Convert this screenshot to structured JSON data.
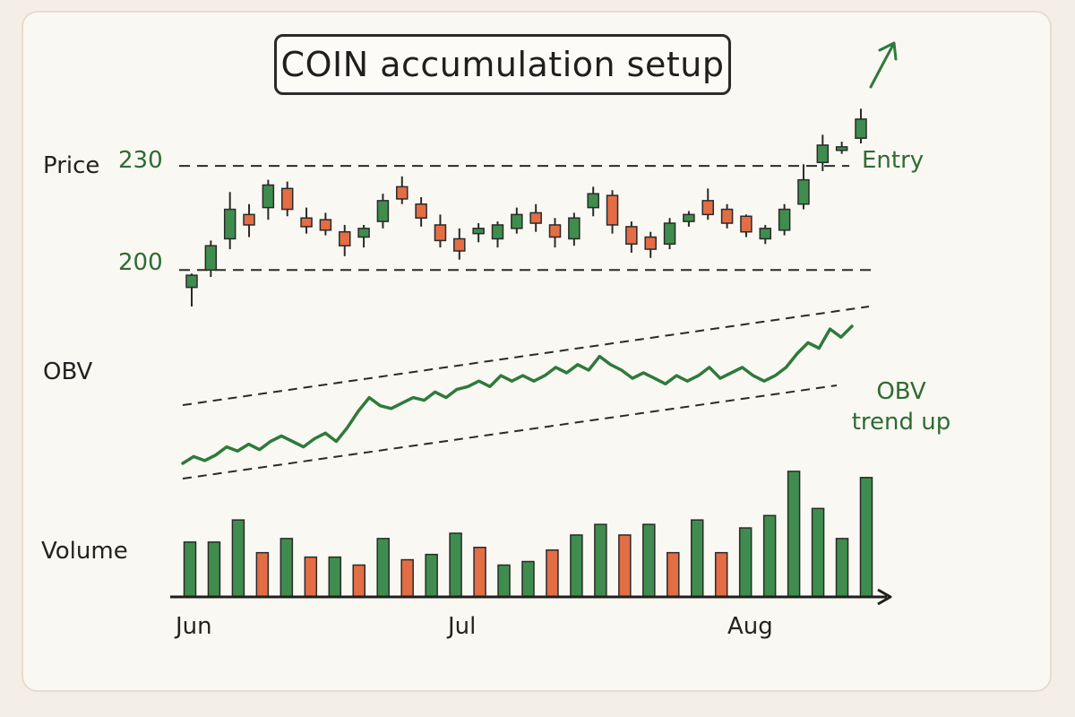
{
  "chart_data": {
    "type": "candlestick-obv-volume",
    "title": "COIN accumulation setup",
    "panels": {
      "price_label": "Price",
      "obv_label": "OBV",
      "volume_label": "Volume"
    },
    "price": {
      "levels": [
        {
          "label": "230",
          "value": 230
        },
        {
          "label": "200",
          "value": 200
        }
      ],
      "entry_label": "Entry",
      "ylim": [
        190,
        252
      ],
      "candles": [
        {
          "open": 195,
          "high": 199,
          "low": 189.5,
          "close": 198.5
        },
        {
          "open": 200,
          "high": 208.5,
          "low": 198,
          "close": 207
        },
        {
          "open": 209,
          "high": 222.5,
          "low": 206,
          "close": 217.5
        },
        {
          "open": 216,
          "high": 219,
          "low": 209.5,
          "close": 213
        },
        {
          "open": 218,
          "high": 226,
          "low": 214.5,
          "close": 224.5
        },
        {
          "open": 223.5,
          "high": 225.5,
          "low": 215.5,
          "close": 217.5
        },
        {
          "open": 215,
          "high": 218,
          "low": 210.5,
          "close": 212.5
        },
        {
          "open": 214.5,
          "high": 216.5,
          "low": 210,
          "close": 211.5
        },
        {
          "open": 211,
          "high": 213,
          "low": 204,
          "close": 207
        },
        {
          "open": 209.5,
          "high": 213,
          "low": 206.5,
          "close": 212
        },
        {
          "open": 214,
          "high": 222,
          "low": 212,
          "close": 220
        },
        {
          "open": 224,
          "high": 227,
          "low": 219,
          "close": 220.5
        },
        {
          "open": 219,
          "high": 221,
          "low": 212.5,
          "close": 215
        },
        {
          "open": 213,
          "high": 216,
          "low": 206.5,
          "close": 208.5
        },
        {
          "open": 209,
          "high": 212,
          "low": 203,
          "close": 205.5
        },
        {
          "open": 210.5,
          "high": 213.5,
          "low": 208,
          "close": 212
        },
        {
          "open": 209,
          "high": 214,
          "low": 206.5,
          "close": 213
        },
        {
          "open": 212,
          "high": 218,
          "low": 210.5,
          "close": 216
        },
        {
          "open": 216.5,
          "high": 219,
          "low": 211,
          "close": 213.5
        },
        {
          "open": 213,
          "high": 215,
          "low": 206.5,
          "close": 209.5
        },
        {
          "open": 209,
          "high": 216.5,
          "low": 207,
          "close": 215
        },
        {
          "open": 218,
          "high": 224,
          "low": 215.5,
          "close": 222
        },
        {
          "open": 221.5,
          "high": 223,
          "low": 210.5,
          "close": 213
        },
        {
          "open": 212.5,
          "high": 214,
          "low": 205,
          "close": 207.5
        },
        {
          "open": 209.5,
          "high": 211,
          "low": 203.5,
          "close": 206
        },
        {
          "open": 207.5,
          "high": 215,
          "low": 206,
          "close": 213.5
        },
        {
          "open": 214,
          "high": 217,
          "low": 212.5,
          "close": 216
        },
        {
          "open": 220,
          "high": 223.5,
          "low": 214.5,
          "close": 216
        },
        {
          "open": 217.5,
          "high": 219,
          "low": 212,
          "close": 213.5
        },
        {
          "open": 215.5,
          "high": 216,
          "low": 209.5,
          "close": 211
        },
        {
          "open": 209,
          "high": 213,
          "low": 207.5,
          "close": 212
        },
        {
          "open": 211.5,
          "high": 219,
          "low": 210,
          "close": 217.5
        },
        {
          "open": 219,
          "high": 230.5,
          "low": 217.5,
          "close": 226
        },
        {
          "open": 231,
          "high": 239,
          "low": 228.5,
          "close": 236
        },
        {
          "open": 234.5,
          "high": 237,
          "low": 233.5,
          "close": 235.5
        },
        {
          "open": 238,
          "high": 246.5,
          "low": 236.5,
          "close": 243.5
        }
      ]
    },
    "obv": {
      "annotation": "OBV\ntrend up",
      "values": [
        0,
        2.5,
        1,
        3,
        6,
        4.5,
        7,
        5,
        8,
        10,
        8,
        6,
        9,
        11,
        8,
        13,
        19,
        24,
        21,
        20,
        22,
        24,
        23,
        26,
        24,
        27,
        28,
        30,
        28,
        32,
        30,
        32,
        30,
        32,
        35,
        33,
        36,
        34,
        39,
        36,
        34,
        31,
        33,
        31,
        29,
        32,
        30,
        32,
        35,
        31,
        33,
        35,
        32,
        30,
        32,
        35,
        40,
        44,
        42,
        49,
        46,
        50
      ]
    },
    "volume": {
      "values": [
        62,
        62,
        87,
        50,
        66,
        45,
        45,
        36,
        66,
        42,
        48,
        72,
        56,
        36,
        40,
        53,
        70,
        82,
        70,
        82,
        50,
        87,
        50,
        78,
        92,
        142,
        100,
        66,
        135
      ],
      "direction": [
        "up",
        "up",
        "up",
        "down",
        "up",
        "down",
        "up",
        "down",
        "up",
        "down",
        "up",
        "up",
        "down",
        "up",
        "up",
        "down",
        "up",
        "up",
        "down",
        "up",
        "down",
        "up",
        "down",
        "up",
        "up",
        "up",
        "up",
        "up",
        "up"
      ]
    },
    "x_ticks": [
      "Jun",
      "Jul",
      "Aug"
    ],
    "colors": {
      "up": "#3f8d4e",
      "down": "#e36d45",
      "obv_line": "#2e7a3c",
      "label_green": "#2e6b34",
      "ink": "#222222"
    }
  }
}
